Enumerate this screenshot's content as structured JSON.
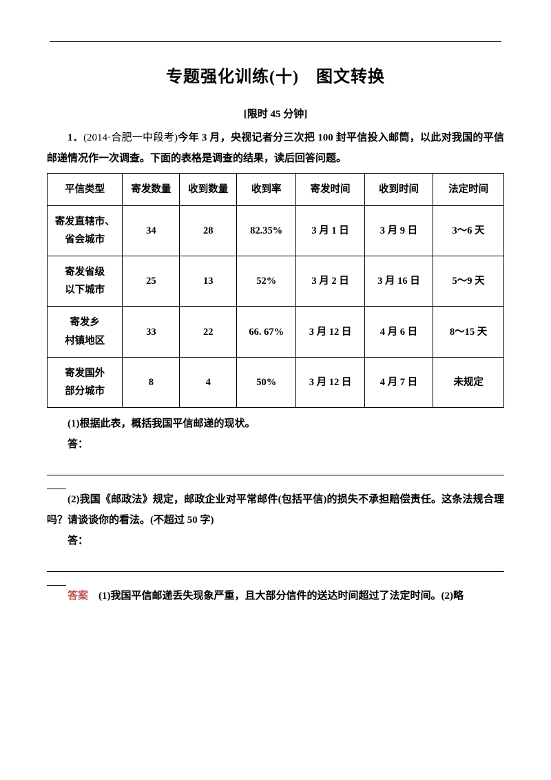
{
  "top_rule": true,
  "title": "专题强化训练(十)　图文转换",
  "subtitle": "[限时 45 分钟]",
  "q1": {
    "number": "1．",
    "source": "(2014·合肥一中段考)",
    "stem": "今年 3 月，央视记者分三次把 100 封平信投入邮筒，以此对我国的平信邮递情况作一次调查。下面的表格是调查的结果，读后回答问题。"
  },
  "table": {
    "type": "table",
    "border_color": "#000000",
    "background_color": "#ffffff",
    "font_weight": "bold",
    "columns": [
      "平信类型",
      "寄发数量",
      "收到数量",
      "收到率",
      "寄发时间",
      "收到时间",
      "法定时间"
    ],
    "col_widths_pct": [
      16.5,
      12.5,
      12.5,
      13,
      15,
      15,
      15.5
    ],
    "rows": [
      {
        "type_l1": "寄发直辖市、",
        "type_l2": "省会城市",
        "sent": "34",
        "recv": "28",
        "rate": "82.35%",
        "sent_t": "3 月 1 日",
        "recv_t": "3 月 9 日",
        "legal": "3～6 天"
      },
      {
        "type_l1": "寄发省级",
        "type_l2": "以下城市",
        "sent": "25",
        "recv": "13",
        "rate": "52%",
        "sent_t": "3 月 2 日",
        "recv_t": "3 月 16 日",
        "legal": "5～9 天"
      },
      {
        "type_l1": "寄发乡",
        "type_l2": "村镇地区",
        "sent": "33",
        "recv": "22",
        "rate": "66. 67%",
        "sent_t": "3 月 12 日",
        "recv_t": "4 月 6 日",
        "legal": "8～15 天"
      },
      {
        "type_l1": "寄发国外",
        "type_l2": "部分城市",
        "sent": "8",
        "recv": "4",
        "rate": "50%",
        "sent_t": "3 月 12 日",
        "recv_t": "4 月 7 日",
        "legal": "未规定"
      }
    ]
  },
  "sub_q1": "(1)根据此表，概括我国平信邮递的现状。",
  "answer_prompt": "答：",
  "sub_q2": "(2)我国《邮政法》规定，邮政企业对平常邮件(包括平信)的损失不承担赔偿责任。这条法规合理吗？请谈谈你的看法。(不超过 50 字)",
  "answer": {
    "label": "答案",
    "text": "　(1)我国平信邮递丢失现象严重，且大部分信件的送达时间超过了法定时间。(2)略",
    "label_color": "#c0504d"
  }
}
